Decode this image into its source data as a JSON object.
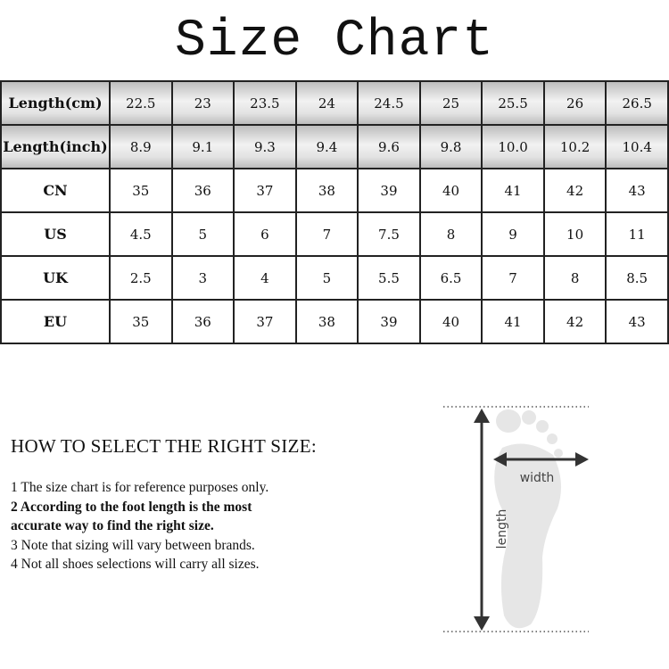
{
  "title": "Size Chart",
  "table": {
    "rows": [
      {
        "label": "Length(cm)",
        "shaded": true,
        "values": [
          "22.5",
          "23",
          "23.5",
          "24",
          "24.5",
          "25",
          "25.5",
          "26",
          "26.5"
        ]
      },
      {
        "label": "Length(inch)",
        "shaded": true,
        "values": [
          "8.9",
          "9.1",
          "9.3",
          "9.4",
          "9.6",
          "9.8",
          "10.0",
          "10.2",
          "10.4"
        ]
      },
      {
        "label": "CN",
        "shaded": false,
        "values": [
          "35",
          "36",
          "37",
          "38",
          "39",
          "40",
          "41",
          "42",
          "43"
        ]
      },
      {
        "label": "US",
        "shaded": false,
        "values": [
          "4.5",
          "5",
          "6",
          "7",
          "7.5",
          "8",
          "9",
          "10",
          "11"
        ]
      },
      {
        "label": "UK",
        "shaded": false,
        "values": [
          "2.5",
          "3",
          "4",
          "5",
          "5.5",
          "6.5",
          "7",
          "8",
          "8.5"
        ]
      },
      {
        "label": "EU",
        "shaded": false,
        "values": [
          "35",
          "36",
          "37",
          "38",
          "39",
          "40",
          "41",
          "42",
          "43"
        ]
      }
    ]
  },
  "howto": {
    "title": "HOW TO SELECT THE RIGHT SIZE:",
    "notes": [
      {
        "text": "1 The size chart is for reference purposes only.",
        "bold": false
      },
      {
        "text": "2 According to the foot length is the most",
        "bold": true
      },
      {
        "text": "accurate way to find the right size.",
        "bold": true
      },
      {
        "text": "3 Note that sizing will vary between brands.",
        "bold": false
      },
      {
        "text": "4 Not all shoes selections will carry all sizes.",
        "bold": false
      }
    ]
  },
  "diagram": {
    "width_label": "width",
    "length_label": "length",
    "foot_color": "#e6e6e6",
    "arrow_color": "#333333"
  }
}
